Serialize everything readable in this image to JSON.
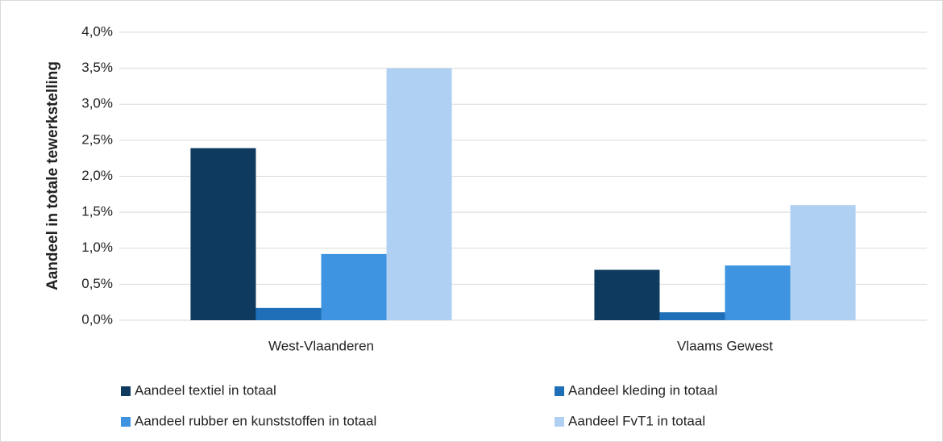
{
  "chart_data": {
    "type": "bar",
    "ylabel": "Aandeel in totale tewerkstelling",
    "categories": [
      "West-Vlaanderen",
      "Vlaams Gewest"
    ],
    "series": [
      {
        "name": "Aandeel textiel in totaal",
        "color": "#0f3a5f",
        "values": [
          2.39,
          0.7
        ]
      },
      {
        "name": "Aandeel kleding in totaal",
        "color": "#1f6fb8",
        "values": [
          0.17,
          0.11
        ]
      },
      {
        "name": "Aandeel rubber en kunststoffen in totaal",
        "color": "#3e94e0",
        "values": [
          0.92,
          0.76
        ]
      },
      {
        "name": "Aandeel FvT1 in totaal",
        "color": "#afd0f2",
        "values": [
          3.5,
          1.6
        ]
      }
    ],
    "ylim": [
      0,
      4
    ],
    "yticks": [
      {
        "value": 0,
        "label": "0,0%"
      },
      {
        "value": 0.5,
        "label": "0,5%"
      },
      {
        "value": 1,
        "label": "1,0%"
      },
      {
        "value": 1.5,
        "label": "1,5%"
      },
      {
        "value": 2,
        "label": "2,0%"
      },
      {
        "value": 2.5,
        "label": "2,5%"
      },
      {
        "value": 3,
        "label": "3,0%"
      },
      {
        "value": 3.5,
        "label": "3,5%"
      },
      {
        "value": 4,
        "label": "4,0%"
      }
    ],
    "grid": true,
    "legend": "bottom"
  }
}
